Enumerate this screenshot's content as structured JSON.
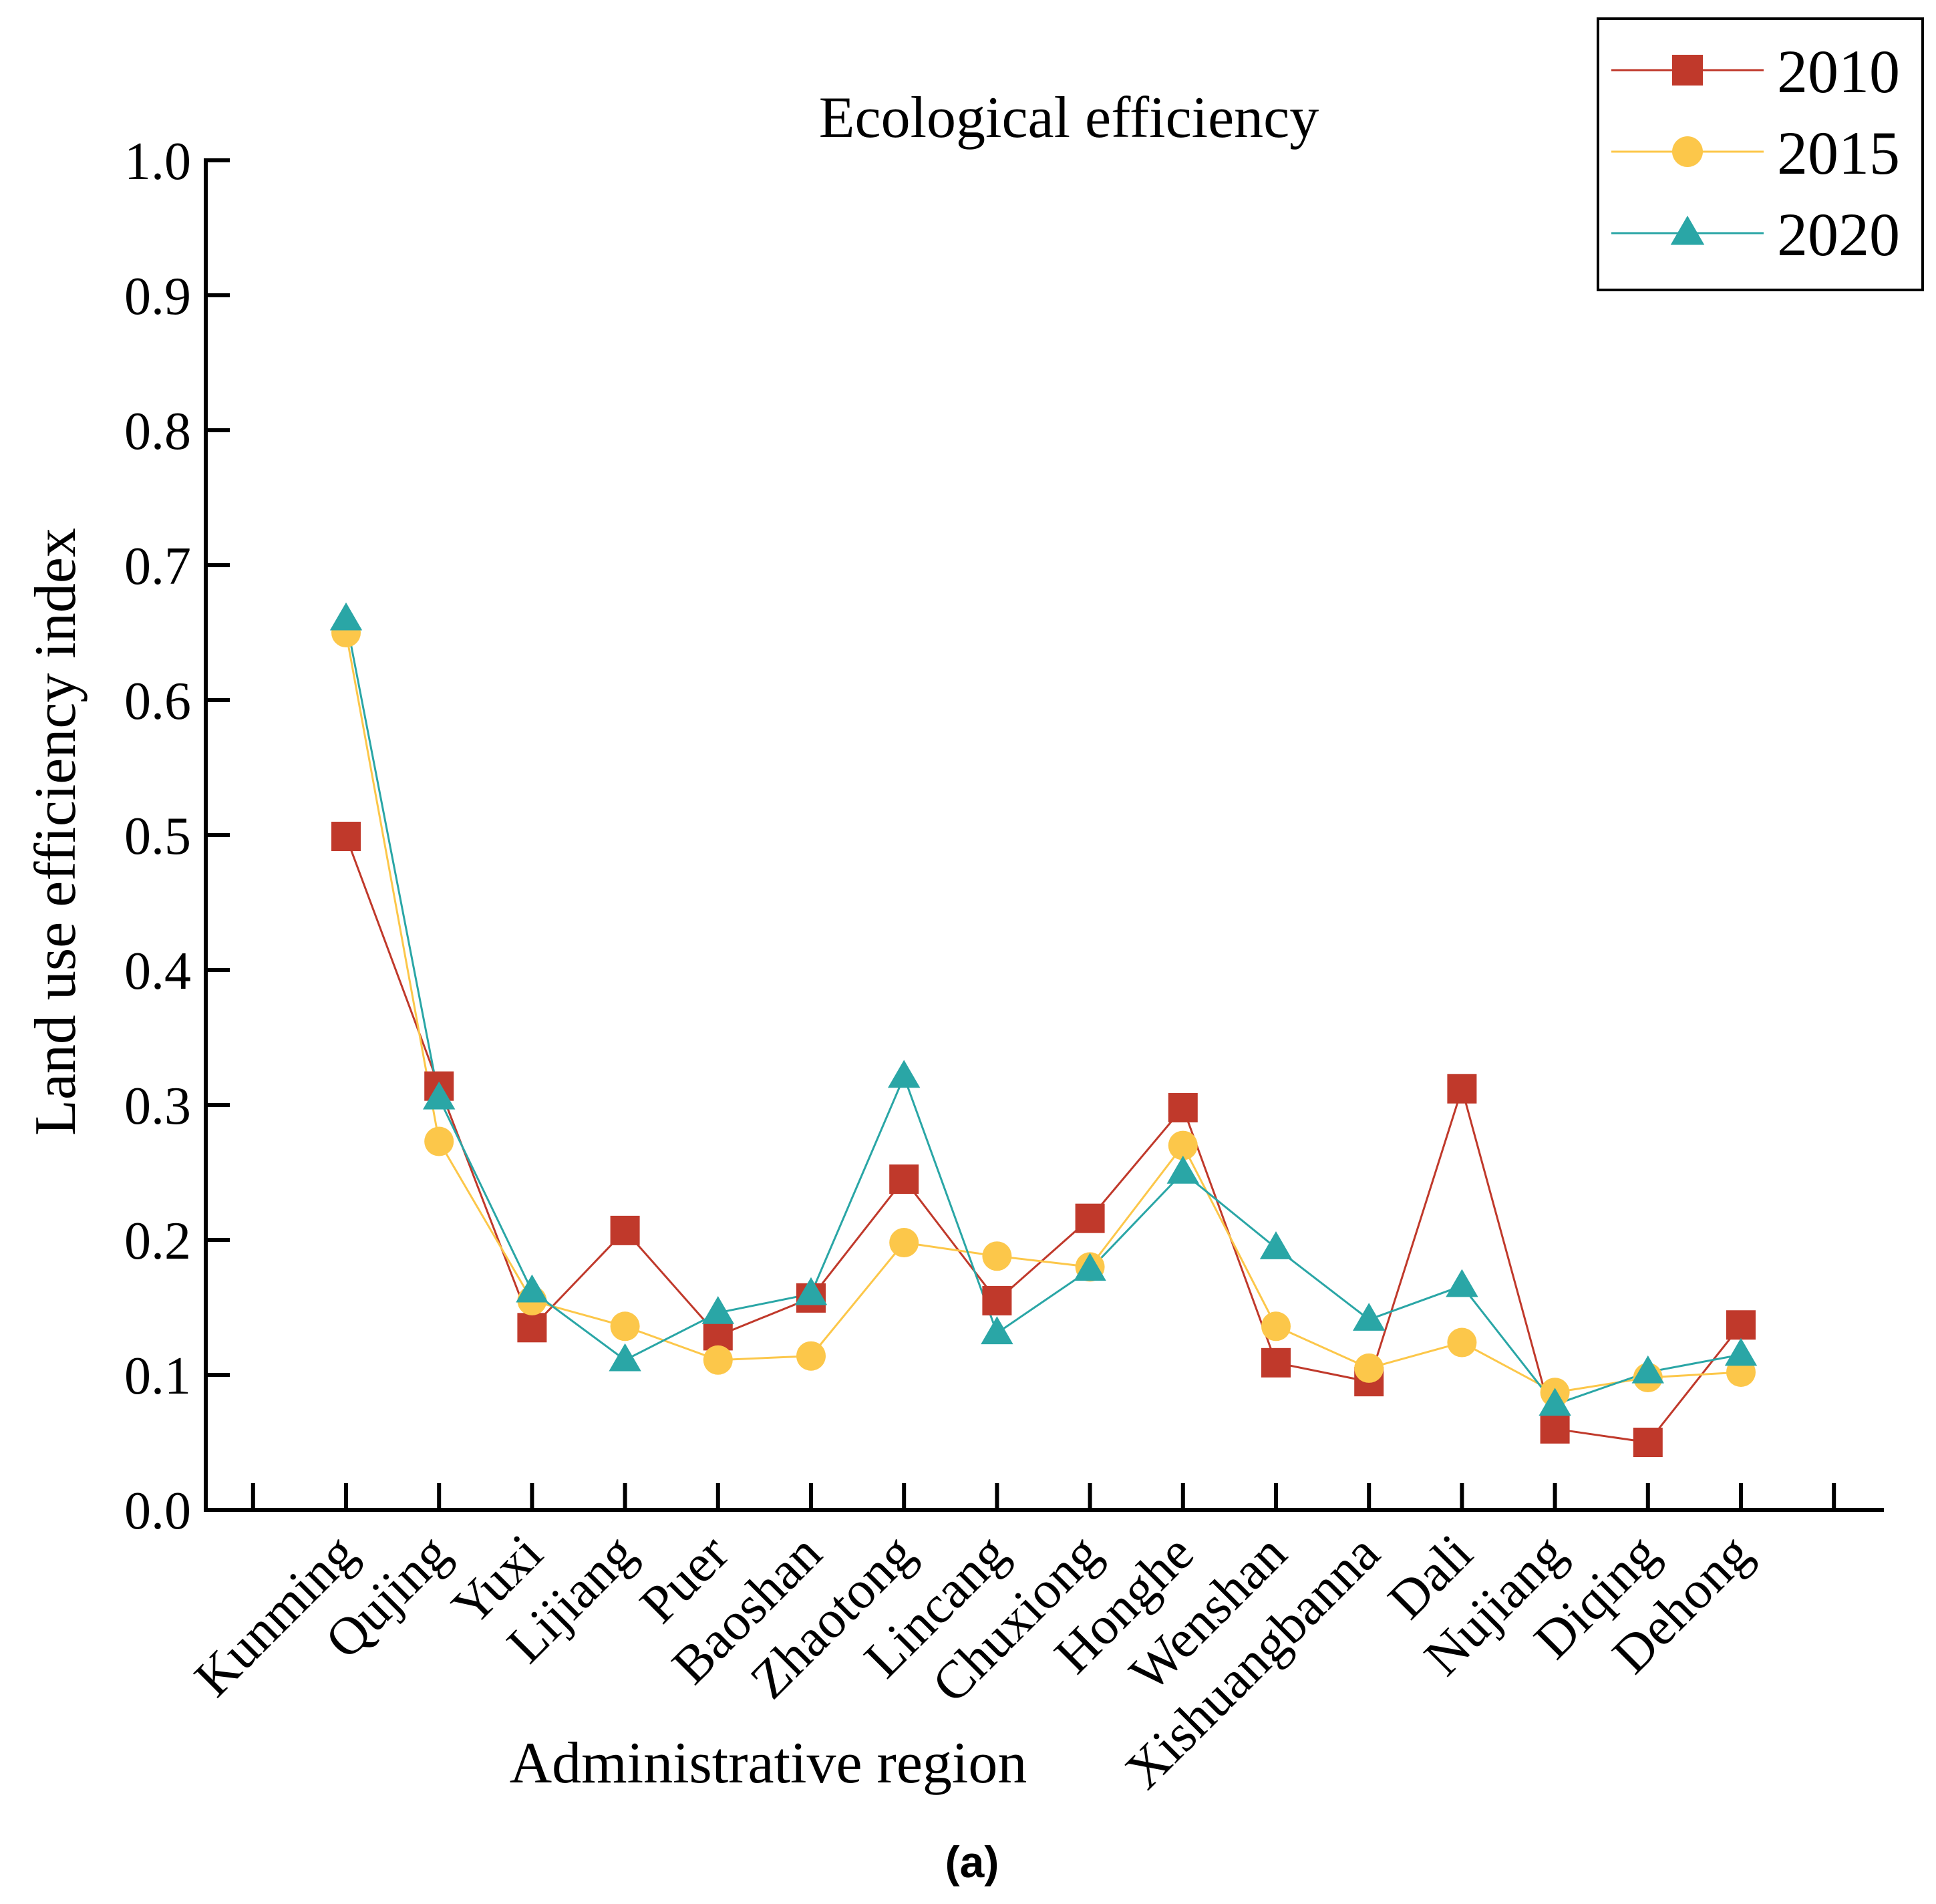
{
  "chart_data": {
    "type": "line",
    "title": "Ecological efficiency",
    "xlabel": "Administrative region",
    "ylabel": "Land use efficiency index",
    "ylim": [
      0,
      1.0
    ],
    "yticks": [
      "0.0",
      "0.1",
      "0.2",
      "0.3",
      "0.4",
      "0.5",
      "0.6",
      "0.7",
      "0.8",
      "0.9",
      "1.0"
    ],
    "legend_position": "top-right",
    "categories": [
      "Kunming",
      "Qujing",
      "Yuxi",
      "Lijiang",
      "Puer",
      "Baoshan",
      "Zhaotong",
      "Lincang",
      "Chuxiong",
      "Honghe",
      "Wenshan",
      "Xishuangbanna",
      "Dali",
      "Nujiang",
      "Diqing",
      "Dehong"
    ],
    "series": [
      {
        "name": "2010",
        "marker": "square",
        "color": "#c0392b",
        "values": [
          0.499,
          0.314,
          0.135,
          0.207,
          0.129,
          0.157,
          0.245,
          0.155,
          0.216,
          0.298,
          0.109,
          0.095,
          0.312,
          0.06,
          0.05,
          0.137
        ]
      },
      {
        "name": "2015",
        "marker": "circle",
        "color": "#fcc74a",
        "values": [
          0.65,
          0.273,
          0.155,
          0.136,
          0.111,
          0.114,
          0.198,
          0.188,
          0.18,
          0.27,
          0.136,
          0.105,
          0.124,
          0.087,
          0.098,
          0.102
        ]
      },
      {
        "name": "2020",
        "marker": "triangle",
        "color": "#2aa6a6",
        "values": [
          0.66,
          0.305,
          0.162,
          0.111,
          0.146,
          0.16,
          0.321,
          0.131,
          0.178,
          0.25,
          0.194,
          0.141,
          0.166,
          0.078,
          0.102,
          0.115
        ]
      }
    ]
  },
  "caption": "(a)"
}
